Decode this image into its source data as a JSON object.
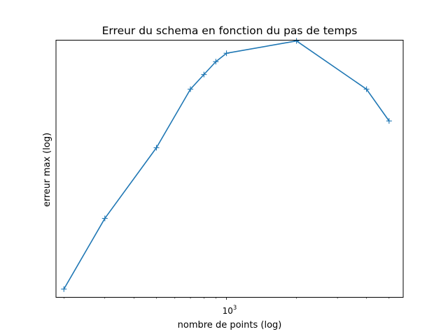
{
  "chart_data": {
    "type": "line",
    "title": "Erreur du schema en fonction du pas de temps",
    "xlabel": "nombre de points (log)",
    "ylabel": "erreur max (log)",
    "xscale": "log",
    "yscale": "log",
    "grid": false,
    "legend": "none",
    "xlim": [
      185,
      5750
    ],
    "ylim_log10": [
      -0.035,
      1.06
    ],
    "x_tick_label": {
      "base": "10",
      "exponent": "3",
      "value": 1000
    },
    "marker": "+",
    "color": "#1f77b4",
    "series": [
      {
        "x": [
          200,
          300,
          500,
          700,
          800,
          900,
          1000,
          2000,
          4000,
          5000
        ],
        "y": [
          1.0,
          2.0,
          4.0,
          7.1,
          8.2,
          9.3,
          10.1,
          11.4,
          7.1,
          5.2
        ]
      }
    ]
  }
}
